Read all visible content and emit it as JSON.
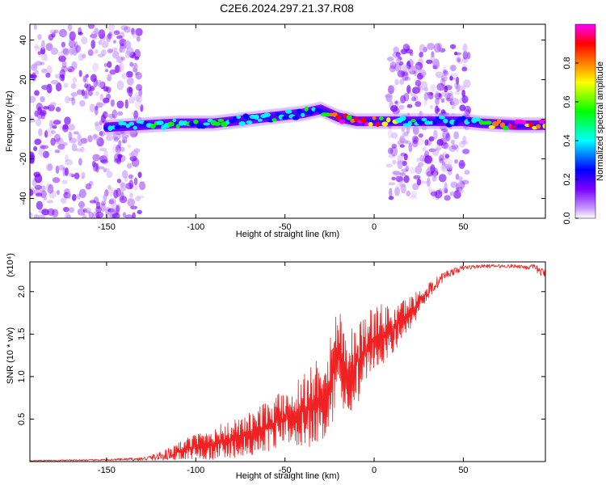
{
  "title": "C2E6.2024.297.21.37.R08",
  "chart_data": [
    {
      "type": "heatmap",
      "xlabel": "Height of straight line (km)",
      "ylabel": "Frequency (Hz)",
      "xlim": [
        -193,
        96
      ],
      "ylim": [
        -50,
        48
      ],
      "xticks": [
        -150,
        -100,
        -50,
        0,
        50
      ],
      "yticks": [
        -40,
        -20,
        0,
        20,
        40
      ],
      "colorbar": {
        "label": "Normalized spectral amplitude",
        "range": [
          0,
          1
        ],
        "ticks": [
          0.0,
          0.2,
          0.4,
          0.6,
          0.8
        ]
      },
      "colormap": [
        "#ffffff",
        "#c79bff",
        "#7a00ff",
        "#0000ff",
        "#00ffff",
        "#00ff00",
        "#ffff00",
        "#ff7f00",
        "#ff0000",
        "#ff00ff"
      ],
      "ridge": {
        "x": [
          -150,
          -130,
          -110,
          -90,
          -70,
          -50,
          -40,
          -30,
          -20,
          -10,
          0,
          10,
          30,
          50,
          60,
          80,
          96
        ],
        "y": [
          -4,
          -3,
          -2,
          -2,
          0,
          2,
          3,
          5,
          1,
          -1,
          -1,
          -1,
          -1,
          -1,
          -2,
          -3,
          -3
        ],
        "peak_amplitude": [
          0.45,
          0.5,
          0.55,
          0.55,
          0.5,
          0.5,
          0.5,
          0.45,
          0.95,
          0.9,
          0.85,
          0.6,
          0.5,
          0.5,
          0.55,
          1.0,
          1.0
        ]
      },
      "noise_regions": [
        {
          "x_range": [
            -193,
            -130
          ],
          "freq_range": [
            -50,
            48
          ],
          "amplitude": "low"
        },
        {
          "x_range": [
            8,
            53
          ],
          "freq_range": [
            -40,
            37
          ],
          "amplitude": "low"
        }
      ]
    },
    {
      "type": "line",
      "xlabel": "Height of straight line (km)",
      "ylabel": "SNR (10 * v/v)",
      "y_multiplier": "(x10⁴)",
      "xlim": [
        -193,
        96
      ],
      "ylim": [
        0,
        2.35
      ],
      "xticks": [
        -150,
        -100,
        -50,
        0,
        50
      ],
      "yticks": [
        0.5,
        1.0,
        1.5,
        2.0
      ],
      "color": "#ee2222",
      "series": [
        {
          "x": [
            -193,
            -150,
            -130,
            -120,
            -110,
            -100,
            -90,
            -80,
            -70,
            -60,
            -50,
            -40,
            -30,
            -25,
            -22,
            -20,
            -15,
            -10,
            -5,
            0,
            10,
            20,
            30,
            40,
            50,
            60,
            70,
            80,
            90,
            96
          ],
          "y": [
            0.01,
            0.02,
            0.03,
            0.06,
            0.12,
            0.18,
            0.22,
            0.26,
            0.32,
            0.42,
            0.5,
            0.6,
            0.75,
            0.9,
            1.1,
            1.3,
            1.05,
            1.15,
            1.3,
            1.45,
            1.55,
            1.75,
            2.0,
            2.2,
            2.28,
            2.3,
            2.3,
            2.3,
            2.28,
            2.2
          ],
          "spread": [
            0.005,
            0.01,
            0.02,
            0.05,
            0.1,
            0.15,
            0.2,
            0.22,
            0.25,
            0.3,
            0.35,
            0.45,
            0.55,
            0.6,
            0.65,
            0.6,
            0.5,
            0.5,
            0.45,
            0.4,
            0.3,
            0.2,
            0.1,
            0.05,
            0.03,
            0.02,
            0.02,
            0.02,
            0.04,
            0.06
          ]
        }
      ]
    }
  ]
}
